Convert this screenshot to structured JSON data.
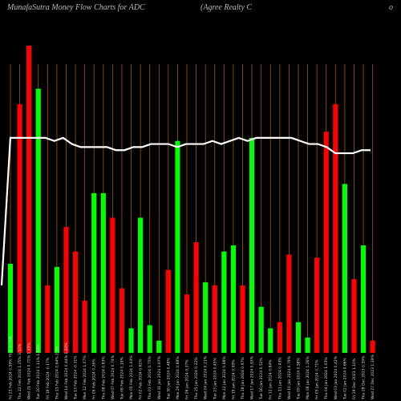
{
  "header": {
    "left": "MunafaSutra  Money Flow  Charts for ADC",
    "mid": "(Agree    Realty C",
    "right": "o"
  },
  "colors": {
    "background": "#000000",
    "up": "#00ff00",
    "down": "#ff0000",
    "line": "#ffffff",
    "grid": "#a05a00"
  },
  "chart_data": {
    "type": "bar",
    "title": "MunafaSutra  Money Flow  Charts for ADC",
    "ylim": [
      0,
      100
    ],
    "bars": [
      {
        "label": "Fri 23 Feb 2024 0.59% 70.6, 0.76%",
        "value": 29,
        "color": "green"
      },
      {
        "label": "Thu 22 Feb 2024 1.25% 3.52%",
        "value": 81,
        "color": "red"
      },
      {
        "label": "Wed 21 Feb 2024 0.72% 1.45%",
        "value": 100,
        "color": "red"
      },
      {
        "label": "Tue 20 Feb 2024 1.11% 1.62%",
        "value": 86,
        "color": "green"
      },
      {
        "label": "Fri 16 Feb 2024 -0.17%",
        "value": 22,
        "color": "red"
      },
      {
        "label": "Thu 15 Feb 2024 0.64% 2.5%",
        "value": 28,
        "color": "green"
      },
      {
        "label": "Wed 14 Feb 2024 0.44% 1.63%",
        "value": 41,
        "color": "red"
      },
      {
        "label": "Tue 13 Feb 2024 -0.31%",
        "value": 33,
        "color": "red"
      },
      {
        "label": "Mon 12 Feb 2024 1.07%",
        "value": 17,
        "color": "red"
      },
      {
        "label": "Fri 09 Feb 2024 0.26%",
        "value": 52,
        "color": "green"
      },
      {
        "label": "Thu 08 Feb 2024 0.83%",
        "value": 52,
        "color": "green"
      },
      {
        "label": "Wed 07 Feb 2024 0.74%",
        "value": 44,
        "color": "red"
      },
      {
        "label": "Tue 06 Feb 2024 0.19%",
        "value": 21,
        "color": "red"
      },
      {
        "label": "Mon 05 Feb 2024 1.04%",
        "value": 8,
        "color": "green"
      },
      {
        "label": "Fri 02 Feb 2024 0.61%",
        "value": 44,
        "color": "green"
      },
      {
        "label": "Thu 01 Feb 2024 0.75%",
        "value": 9,
        "color": "green"
      },
      {
        "label": "Wed 31 Jan 2024 1.07%",
        "value": 4,
        "color": "green"
      },
      {
        "label": "Tue 30 Jan 2024 0.48%",
        "value": 27,
        "color": "red"
      },
      {
        "label": "Mon 29 Jan 2024 0.88%",
        "value": 69,
        "color": "green"
      },
      {
        "label": "Fri 26 Jan 2024 0.37%",
        "value": 19,
        "color": "red"
      },
      {
        "label": "Thu 25 Jan 2024 0.32%",
        "value": 36,
        "color": "red"
      },
      {
        "label": "Wed 24 Jan 2024 0.21%",
        "value": 23,
        "color": "green"
      },
      {
        "label": "Tue 23 Jan 2024 0.45%",
        "value": 22,
        "color": "red"
      },
      {
        "label": "Mon 22 Jan 2024 0.68%",
        "value": 33,
        "color": "green"
      },
      {
        "label": "Fri 19 Jan 2024 0.59%",
        "value": 35,
        "color": "green"
      },
      {
        "label": "Thu 18 Jan 2024 0.97%",
        "value": 22,
        "color": "red"
      },
      {
        "label": "Wed 17 Jan 2024 0.93%",
        "value": 70,
        "color": "green"
      },
      {
        "label": "Tue 16 Jan 2024 0.51%",
        "value": 15,
        "color": "green"
      },
      {
        "label": "Fri 12 Jan 2024 0.84%",
        "value": 8,
        "color": "green"
      },
      {
        "label": "Thu 11 Jan 2024 0.43%",
        "value": 10,
        "color": "red"
      },
      {
        "label": "Wed 10 Jan 2024 0.79%",
        "value": 32,
        "color": "red"
      },
      {
        "label": "Tue 09 Jan 2024 0.58%",
        "value": 10,
        "color": "green"
      },
      {
        "label": "Mon 08 Jan 2024 1.26%",
        "value": 5,
        "color": "green"
      },
      {
        "label": "Fri 05 Jan 2024 0.71%",
        "value": 31,
        "color": "red"
      },
      {
        "label": "Thu 04 Jan 2024 1.03%",
        "value": 72,
        "color": "red"
      },
      {
        "label": "Wed 03 Jan 2024 0.42%",
        "value": 81,
        "color": "red"
      },
      {
        "label": "Tue 02 Jan 2024 0.66%",
        "value": 55,
        "color": "green"
      },
      {
        "label": "Fri 29 Dec 2023 1.10%",
        "value": 24,
        "color": "red"
      },
      {
        "label": "Thu 28 Dec 2023 0.39%",
        "value": 35,
        "color": "green"
      },
      {
        "label": "Wed 27 Dec 2023 1.39%",
        "value": 4,
        "color": "red"
      }
    ],
    "line": [
      22,
      70,
      70,
      70,
      70,
      70,
      69,
      70,
      68,
      67,
      67,
      67,
      67,
      66,
      66,
      67,
      67,
      68,
      68,
      68,
      67,
      68,
      68,
      68,
      69,
      68,
      69,
      70,
      69,
      70,
      70,
      70,
      70,
      70,
      69,
      68,
      68,
      67,
      65,
      65,
      65,
      66,
      66
    ],
    "grid": true
  }
}
